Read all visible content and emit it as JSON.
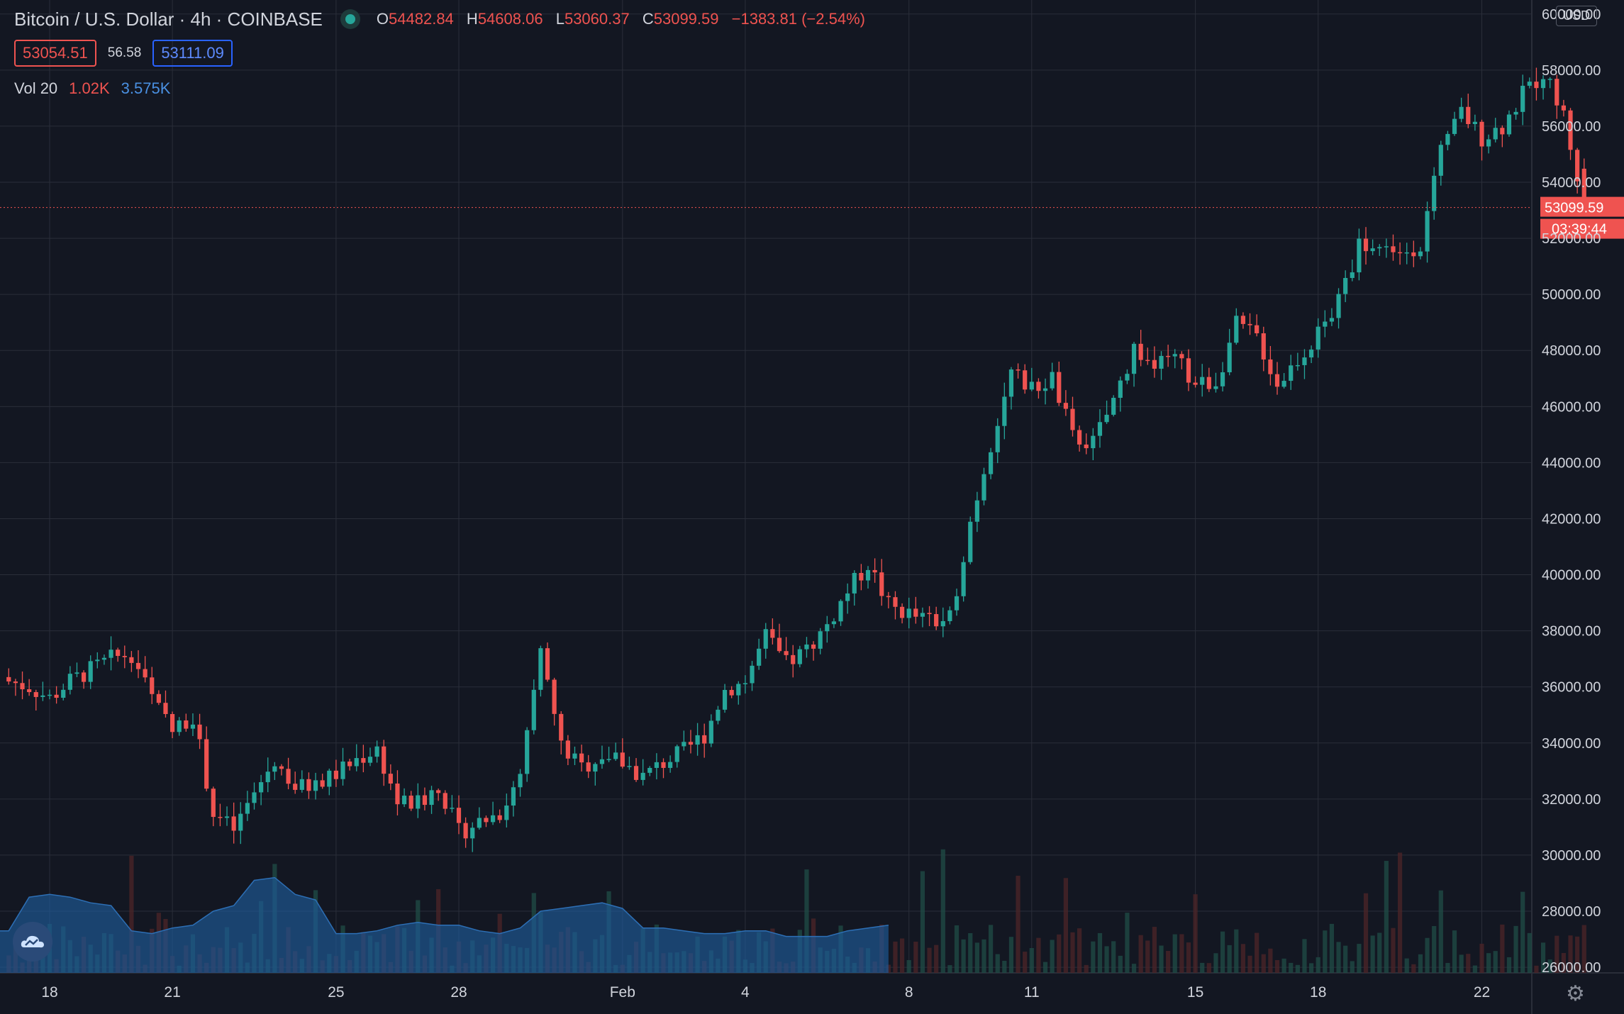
{
  "header": {
    "title": "Bitcoin / U.S. Dollar · 4h · COINBASE",
    "open_label": "O",
    "open": "54482.84",
    "high_label": "H",
    "high": "54608.06",
    "low_label": "L",
    "low": "53060.37",
    "close_label": "C",
    "close": "53099.59",
    "change": "−1383.81 (−2.54%)"
  },
  "quote": {
    "sell": "53054.51",
    "spread": "56.58",
    "buy": "53111.09"
  },
  "volume_legend": {
    "label": "Vol 20",
    "value": "1.02K",
    "ma": "3.575K"
  },
  "currency_button": "USD",
  "colors": {
    "up": "#26a69a",
    "down": "#ef5350",
    "background": "#131722",
    "grid": "#2a2e39",
    "volume_ma": "#1e5a9a"
  },
  "icons": {
    "logo": "cloud-logo-icon",
    "settings": "gear-icon"
  },
  "chart_data": {
    "type": "candlestick",
    "y_axis_labels": [
      "60000.00",
      "58000.00",
      "56000.00",
      "54000.00",
      "52000.00",
      "50000.00",
      "48000.00",
      "46000.00",
      "44000.00",
      "42000.00",
      "40000.00",
      "38000.00",
      "36000.00",
      "34000.00",
      "32000.00",
      "30000.00",
      "28000.00",
      "26000.00"
    ],
    "ylim": [
      25800,
      60500
    ],
    "x_labels": [
      "18",
      "21",
      "25",
      "28",
      "Feb",
      "4",
      "8",
      "11",
      "15",
      "18",
      "22"
    ],
    "x_label_days": [
      18,
      21,
      25,
      28,
      32,
      35,
      39,
      42,
      46,
      49,
      53
    ],
    "last_price_label": "53099.59",
    "countdown_label": "03:39:44",
    "last_price": 53099.59,
    "close_anchors": [
      [
        17.0,
        36200
      ],
      [
        17.5,
        36000
      ],
      [
        18.0,
        35600
      ],
      [
        18.5,
        36200
      ],
      [
        19.0,
        36600
      ],
      [
        19.5,
        37000
      ],
      [
        20.0,
        37200
      ],
      [
        20.5,
        35600
      ],
      [
        21.0,
        34400
      ],
      [
        21.5,
        35000
      ],
      [
        22.0,
        31500
      ],
      [
        22.5,
        30900
      ],
      [
        23.0,
        32200
      ],
      [
        23.5,
        33400
      ],
      [
        24.0,
        32400
      ],
      [
        24.5,
        32500
      ],
      [
        25.0,
        32900
      ],
      [
        25.5,
        33400
      ],
      [
        26.0,
        33800
      ],
      [
        26.5,
        31900
      ],
      [
        27.0,
        31800
      ],
      [
        27.5,
        32500
      ],
      [
        28.0,
        30800
      ],
      [
        28.5,
        31200
      ],
      [
        29.0,
        31500
      ],
      [
        29.5,
        32700
      ],
      [
        30.0,
        37200
      ],
      [
        30.5,
        33900
      ],
      [
        31.0,
        33100
      ],
      [
        31.5,
        33600
      ],
      [
        32.0,
        33300
      ],
      [
        32.5,
        32800
      ],
      [
        33.0,
        33300
      ],
      [
        33.5,
        33700
      ],
      [
        34.0,
        34300
      ],
      [
        34.5,
        35900
      ],
      [
        35.0,
        36200
      ],
      [
        35.5,
        37800
      ],
      [
        36.0,
        36800
      ],
      [
        36.5,
        37300
      ],
      [
        37.0,
        38200
      ],
      [
        37.5,
        39400
      ],
      [
        38.0,
        40400
      ],
      [
        38.5,
        38900
      ],
      [
        39.0,
        38600
      ],
      [
        39.5,
        38300
      ],
      [
        40.0,
        38400
      ],
      [
        40.5,
        41900
      ],
      [
        41.0,
        44700
      ],
      [
        41.5,
        47200
      ],
      [
        42.0,
        46600
      ],
      [
        42.5,
        47000
      ],
      [
        43.0,
        44900
      ],
      [
        43.5,
        44700
      ],
      [
        44.0,
        46200
      ],
      [
        44.5,
        48100
      ],
      [
        45.0,
        47400
      ],
      [
        45.5,
        47700
      ],
      [
        46.0,
        46800
      ],
      [
        46.5,
        46900
      ],
      [
        47.0,
        48900
      ],
      [
        47.5,
        48500
      ],
      [
        48.0,
        46800
      ],
      [
        48.5,
        47700
      ],
      [
        49.0,
        48600
      ],
      [
        49.5,
        49700
      ],
      [
        50.0,
        51800
      ],
      [
        50.5,
        51700
      ],
      [
        51.0,
        51500
      ],
      [
        51.5,
        51800
      ],
      [
        52.0,
        55000
      ],
      [
        52.5,
        56500
      ],
      [
        53.0,
        55600
      ],
      [
        53.5,
        56000
      ],
      [
        54.0,
        57100
      ],
      [
        54.5,
        57900
      ],
      [
        55.0,
        56400
      ],
      [
        55.5,
        53100
      ]
    ],
    "volume_ma_anchors": [
      [
        14.0,
        27900
      ],
      [
        14.7,
        27600
      ],
      [
        15.2,
        27100
      ],
      [
        16.0,
        27200
      ],
      [
        16.5,
        27300
      ],
      [
        17.0,
        27300
      ],
      [
        17.5,
        28500
      ],
      [
        18.0,
        28600
      ],
      [
        18.5,
        28500
      ],
      [
        19.0,
        28300
      ],
      [
        19.5,
        28200
      ],
      [
        20.0,
        27300
      ],
      [
        20.5,
        27200
      ],
      [
        21.0,
        27400
      ],
      [
        21.5,
        27500
      ],
      [
        22.0,
        28000
      ],
      [
        22.5,
        28200
      ],
      [
        23.0,
        29100
      ],
      [
        23.5,
        29200
      ],
      [
        24.0,
        28600
      ],
      [
        24.5,
        28400
      ],
      [
        25.0,
        27200
      ],
      [
        25.5,
        27200
      ],
      [
        26.0,
        27300
      ],
      [
        26.5,
        27500
      ],
      [
        27.0,
        27600
      ],
      [
        27.5,
        27500
      ],
      [
        28.0,
        27500
      ],
      [
        28.5,
        27300
      ],
      [
        29.0,
        27200
      ],
      [
        29.5,
        27400
      ],
      [
        30.0,
        28000
      ],
      [
        30.5,
        28100
      ],
      [
        31.0,
        28200
      ],
      [
        31.5,
        28300
      ],
      [
        32.0,
        28100
      ],
      [
        32.5,
        27400
      ],
      [
        33.0,
        27400
      ],
      [
        33.5,
        27300
      ],
      [
        34.0,
        27200
      ],
      [
        34.5,
        27200
      ],
      [
        35.0,
        27300
      ],
      [
        35.5,
        27300
      ],
      [
        36.0,
        27100
      ],
      [
        36.5,
        27100
      ],
      [
        37.0,
        27100
      ],
      [
        37.5,
        27300
      ],
      [
        38.0,
        27400
      ],
      [
        38.5,
        27500
      ]
    ]
  }
}
